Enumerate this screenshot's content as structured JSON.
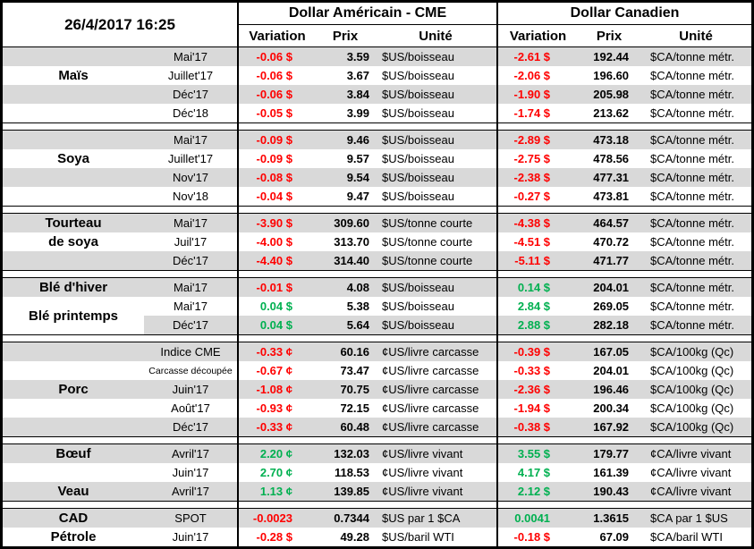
{
  "header": {
    "timestamp": "26/4/2017 16:25",
    "usd_title": "Dollar Américain - CME",
    "cad_title": "Dollar Canadien",
    "columns": {
      "variation": "Variation",
      "prix": "Prix",
      "unite": "Unité"
    }
  },
  "colors": {
    "negative": "#FF0000",
    "positive": "#00B050",
    "row_shade": "#D9D9D9",
    "row_plain": "#FFFFFF",
    "border": "#000000"
  },
  "sections": [
    {
      "rows": [
        {
          "group": "",
          "contract": "Mai'17",
          "us_var": "-0.06 $",
          "us_c": "r",
          "us_prix": "3.59",
          "us_unit": "$US/boisseau",
          "ca_var": "-2.61 $",
          "ca_c": "r",
          "ca_prix": "192.44",
          "ca_unit": "$CA/tonne métr."
        },
        {
          "group": "Maïs",
          "contract": "Juillet'17",
          "us_var": "-0.06 $",
          "us_c": "r",
          "us_prix": "3.67",
          "us_unit": "$US/boisseau",
          "ca_var": "-2.06 $",
          "ca_c": "r",
          "ca_prix": "196.60",
          "ca_unit": "$CA/tonne métr."
        },
        {
          "group": "",
          "contract": "Déc'17",
          "us_var": "-0.06 $",
          "us_c": "r",
          "us_prix": "3.84",
          "us_unit": "$US/boisseau",
          "ca_var": "-1.90 $",
          "ca_c": "r",
          "ca_prix": "205.98",
          "ca_unit": "$CA/tonne métr."
        },
        {
          "group": "",
          "contract": "Déc'18",
          "us_var": "-0.05 $",
          "us_c": "r",
          "us_prix": "3.99",
          "us_unit": "$US/boisseau",
          "ca_var": "-1.74 $",
          "ca_c": "r",
          "ca_prix": "213.62",
          "ca_unit": "$CA/tonne métr."
        }
      ]
    },
    {
      "rows": [
        {
          "group": "",
          "contract": "Mai'17",
          "us_var": "-0.09 $",
          "us_c": "r",
          "us_prix": "9.46",
          "us_unit": "$US/boisseau",
          "ca_var": "-2.89 $",
          "ca_c": "r",
          "ca_prix": "473.18",
          "ca_unit": "$CA/tonne métr."
        },
        {
          "group": "Soya",
          "contract": "Juillet'17",
          "us_var": "-0.09 $",
          "us_c": "r",
          "us_prix": "9.57",
          "us_unit": "$US/boisseau",
          "ca_var": "-2.75 $",
          "ca_c": "r",
          "ca_prix": "478.56",
          "ca_unit": "$CA/tonne métr."
        },
        {
          "group": "",
          "contract": "Nov'17",
          "us_var": "-0.08 $",
          "us_c": "r",
          "us_prix": "9.54",
          "us_unit": "$US/boisseau",
          "ca_var": "-2.38 $",
          "ca_c": "r",
          "ca_prix": "477.31",
          "ca_unit": "$CA/tonne métr."
        },
        {
          "group": "",
          "contract": "Nov'18",
          "us_var": "-0.04 $",
          "us_c": "r",
          "us_prix": "9.47",
          "us_unit": "$US/boisseau",
          "ca_var": "-0.27 $",
          "ca_c": "r",
          "ca_prix": "473.81",
          "ca_unit": "$CA/tonne métr."
        }
      ]
    },
    {
      "rows": [
        {
          "group": "Tourteau",
          "contract": "Mai'17",
          "us_var": "-3.90 $",
          "us_c": "r",
          "us_prix": "309.60",
          "us_unit": "$US/tonne courte",
          "ca_var": "-4.38 $",
          "ca_c": "r",
          "ca_prix": "464.57",
          "ca_unit": "$CA/tonne métr."
        },
        {
          "group": "de soya",
          "contract": "Juil'17",
          "us_var": "-4.00 $",
          "us_c": "r",
          "us_prix": "313.70",
          "us_unit": "$US/tonne courte",
          "ca_var": "-4.51 $",
          "ca_c": "r",
          "ca_prix": "470.72",
          "ca_unit": "$CA/tonne métr."
        },
        {
          "group": "",
          "contract": "Déc'17",
          "us_var": "-4.40 $",
          "us_c": "r",
          "us_prix": "314.40",
          "us_unit": "$US/tonne courte",
          "ca_var": "-5.11 $",
          "ca_c": "r",
          "ca_prix": "471.77",
          "ca_unit": "$CA/tonne métr."
        }
      ]
    },
    {
      "rows": [
        {
          "group": "Blé d'hiver",
          "contract": "Mai'17",
          "us_var": "-0.01 $",
          "us_c": "r",
          "us_prix": "4.08",
          "us_unit": "$US/boisseau",
          "ca_var": "0.14 $",
          "ca_c": "g",
          "ca_prix": "204.01",
          "ca_unit": "$CA/tonne métr."
        },
        {
          "group": "Blé printemps",
          "group_span": 2,
          "contract": "Mai'17",
          "us_var": "0.04 $",
          "us_c": "g",
          "us_prix": "5.38",
          "us_unit": "$US/boisseau",
          "ca_var": "2.84 $",
          "ca_c": "g",
          "ca_prix": "269.05",
          "ca_unit": "$CA/tonne métr."
        },
        {
          "group_skip": true,
          "contract": "Déc'17",
          "us_var": "0.04 $",
          "us_c": "g",
          "us_prix": "5.64",
          "us_unit": "$US/boisseau",
          "ca_var": "2.88 $",
          "ca_c": "g",
          "ca_prix": "282.18",
          "ca_unit": "$CA/tonne métr."
        }
      ]
    },
    {
      "rows": [
        {
          "group": "",
          "contract": "Indice CME",
          "us_var": "-0.33 ¢",
          "us_c": "r",
          "us_prix": "60.16",
          "us_unit": "¢US/livre carcasse",
          "ca_var": "-0.39 $",
          "ca_c": "r",
          "ca_prix": "167.05",
          "ca_unit": "$CA/100kg (Qc)"
        },
        {
          "group": "",
          "contract": "Carcasse découpée",
          "contract_small": true,
          "us_var": "-0.67 ¢",
          "us_c": "r",
          "us_prix": "73.47",
          "us_unit": "¢US/livre carcasse",
          "ca_var": "-0.33 $",
          "ca_c": "r",
          "ca_prix": "204.01",
          "ca_unit": "$CA/100kg (Qc)"
        },
        {
          "group": "Porc",
          "contract": "Juin'17",
          "us_var": "-1.08 ¢",
          "us_c": "r",
          "us_prix": "70.75",
          "us_unit": "¢US/livre carcasse",
          "ca_var": "-2.36 $",
          "ca_c": "r",
          "ca_prix": "196.46",
          "ca_unit": "$CA/100kg (Qc)"
        },
        {
          "group": "",
          "contract": "Août'17",
          "us_var": "-0.93 ¢",
          "us_c": "r",
          "us_prix": "72.15",
          "us_unit": "¢US/livre carcasse",
          "ca_var": "-1.94 $",
          "ca_c": "r",
          "ca_prix": "200.34",
          "ca_unit": "$CA/100kg (Qc)"
        },
        {
          "group": "",
          "contract": "Déc'17",
          "us_var": "-0.33 ¢",
          "us_c": "r",
          "us_prix": "60.48",
          "us_unit": "¢US/livre carcasse",
          "ca_var": "-0.38 $",
          "ca_c": "r",
          "ca_prix": "167.92",
          "ca_unit": "$CA/100kg (Qc)"
        }
      ]
    },
    {
      "rows": [
        {
          "group": "Bœuf",
          "contract": "Avril'17",
          "us_var": "2.20 ¢",
          "us_c": "g",
          "us_prix": "132.03",
          "us_unit": "¢US/livre vivant",
          "ca_var": "3.55 $",
          "ca_c": "g",
          "ca_prix": "179.77",
          "ca_unit": "¢CA/livre vivant"
        },
        {
          "group": "",
          "contract": "Juin'17",
          "us_var": "2.70 ¢",
          "us_c": "g",
          "us_prix": "118.53",
          "us_unit": "¢US/livre vivant",
          "ca_var": "4.17 $",
          "ca_c": "g",
          "ca_prix": "161.39",
          "ca_unit": "¢CA/livre vivant"
        },
        {
          "group": "Veau",
          "contract": "Avril'17",
          "us_var": "1.13 ¢",
          "us_c": "g",
          "us_prix": "139.85",
          "us_unit": "¢US/livre vivant",
          "ca_var": "2.12 $",
          "ca_c": "g",
          "ca_prix": "190.43",
          "ca_unit": "¢CA/livre vivant"
        }
      ]
    },
    {
      "rows": [
        {
          "group": "CAD",
          "contract": "SPOT",
          "us_var": "-0.0023",
          "us_c": "r",
          "us_prix": "0.7344",
          "us_unit": "$US par 1 $CA",
          "ca_var": "0.0041",
          "ca_c": "g",
          "ca_prix": "1.3615",
          "ca_unit": "$CA par 1 $US"
        },
        {
          "group": "Pétrole",
          "contract": "Juin'17",
          "us_var": "-0.28 $",
          "us_c": "r",
          "us_prix": "49.28",
          "us_unit": "$US/baril WTI",
          "ca_var": "-0.18 $",
          "ca_c": "r",
          "ca_prix": "67.09",
          "ca_unit": "$CA/baril WTI"
        }
      ]
    }
  ]
}
